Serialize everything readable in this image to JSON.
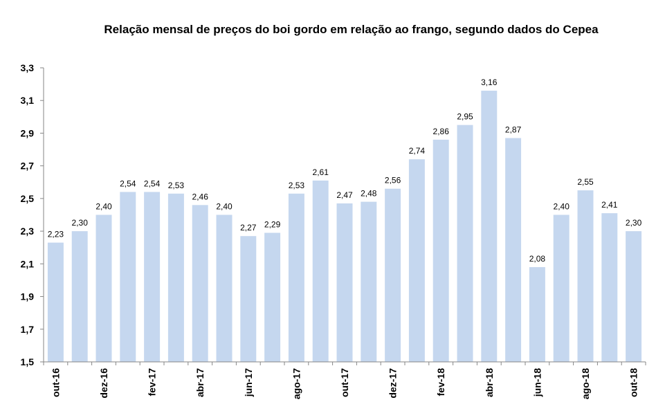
{
  "chart_data": {
    "type": "bar",
    "title": "Relação mensal de preços do boi gordo em relação ao frango, segundo dados do Cepea",
    "xlabel": "",
    "ylabel": "",
    "ylim": [
      1.5,
      3.3
    ],
    "yticks": [
      "1,5",
      "1,7",
      "1,9",
      "2,1",
      "2,3",
      "2,5",
      "2,7",
      "2,9",
      "3,1",
      "3,3"
    ],
    "categories": [
      "out-16",
      "nov-16",
      "dez-16",
      "jan-17",
      "fev-17",
      "mar-17",
      "abr-17",
      "mai-17",
      "jun-17",
      "jul-17",
      "ago-17",
      "set-17",
      "out-17",
      "nov-17",
      "dez-17",
      "jan-18",
      "fev-18",
      "mar-18",
      "abr-18",
      "mai-18",
      "jun-18",
      "jul-18",
      "ago-18",
      "set-18",
      "out-18"
    ],
    "xtick_labels": [
      "out-16",
      "",
      "dez-16",
      "",
      "fev-17",
      "",
      "abr-17",
      "",
      "jun-17",
      "",
      "ago-17",
      "",
      "out-17",
      "",
      "dez-17",
      "",
      "fev-18",
      "",
      "abr-18",
      "",
      "jun-18",
      "",
      "ago-18",
      "",
      "out-18"
    ],
    "values": [
      2.23,
      2.3,
      2.4,
      2.54,
      2.54,
      2.53,
      2.46,
      2.4,
      2.27,
      2.29,
      2.53,
      2.61,
      2.47,
      2.48,
      2.56,
      2.74,
      2.86,
      2.95,
      3.16,
      2.87,
      2.08,
      2.4,
      2.55,
      2.41,
      2.3
    ],
    "data_labels": [
      "2,23",
      "2,30",
      "2,40",
      "2,54",
      "2,54",
      "2,53",
      "2,46",
      "2,40",
      "2,27",
      "2,29",
      "2,53",
      "2,61",
      "2,47",
      "2,48",
      "2,56",
      "2,74",
      "2,86",
      "2,95",
      "3,16",
      "2,87",
      "2,08",
      "2,40",
      "2,55",
      "2,41",
      "2,30"
    ],
    "bar_color": "#c5d7ef",
    "axis_color": "#868686",
    "grid": false,
    "legend": "none"
  }
}
